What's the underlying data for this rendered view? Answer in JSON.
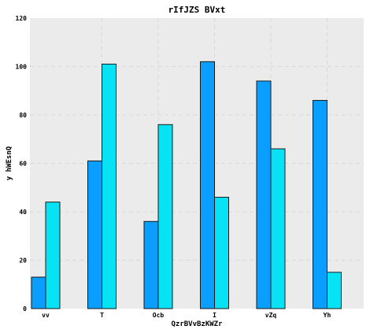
{
  "chart_data": {
    "type": "bar",
    "title": "rIfJZS BVxt",
    "xlabel": "QzrBVvBzKWZr",
    "ylabel": "y hWEsnQ",
    "categories": [
      "vv",
      "T",
      "Ocb",
      "I",
      "vZq",
      "Yh"
    ],
    "series": [
      {
        "values": [
          13,
          61,
          36,
          102,
          94,
          86
        ],
        "color": "#0a9eff"
      },
      {
        "values": [
          44,
          101,
          76,
          46,
          66,
          15
        ],
        "color": "#08e2f5"
      }
    ],
    "ylim": [
      0,
      120
    ],
    "yticks": [
      0,
      20,
      40,
      60,
      80,
      100,
      120
    ],
    "grid": true,
    "background": "#ebebeb"
  }
}
